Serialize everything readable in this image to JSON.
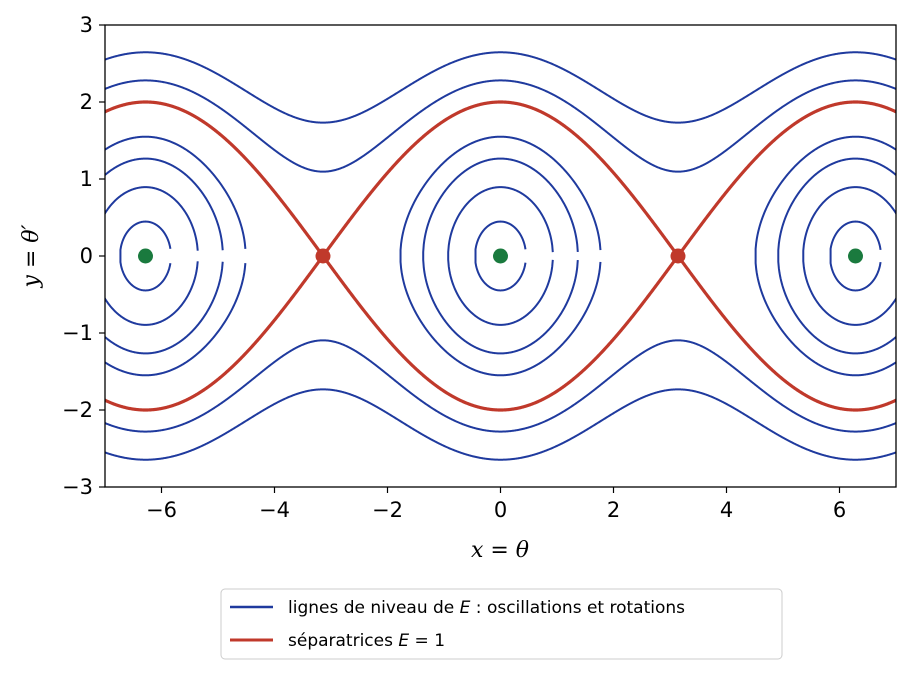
{
  "chart_data": {
    "type": "line",
    "title": "",
    "xlabel": "x = θ",
    "ylabel": "y = θ′",
    "xlim": [
      -7,
      7
    ],
    "ylim": [
      -3,
      3
    ],
    "xticks": [
      -6,
      -4,
      -2,
      0,
      2,
      4,
      6
    ],
    "yticks": [
      -3,
      -2,
      -1,
      0,
      1,
      2,
      3
    ],
    "xtick_labels": [
      "−6",
      "−4",
      "−2",
      "0",
      "2",
      "4",
      "6"
    ],
    "ytick_labels": [
      "−3",
      "−2",
      "−1",
      "0",
      "1",
      "2",
      "3"
    ],
    "grid": false,
    "legend_placement": "below",
    "colors": {
      "level": "#1f3a9e",
      "separatrix": "#c0392b",
      "center": "#1a7a3e",
      "saddle": "#c0392b"
    },
    "series": [
      {
        "name": "lignes de niveau de E : oscillations et rotations",
        "energy_levels": [
          0.05,
          0.2,
          0.4,
          0.6,
          1.3,
          1.75
        ],
        "color": "#1f3a9e"
      },
      {
        "name": "séparatrices E = 1",
        "energy_levels": [
          1.0
        ],
        "color": "#c0392b"
      }
    ],
    "equilibria": {
      "centers": [
        [
          -6.2832,
          0
        ],
        [
          0,
          0
        ],
        [
          6.2832,
          0
        ]
      ],
      "saddles": [
        [
          -3.1416,
          0
        ],
        [
          3.1416,
          0
        ]
      ]
    }
  },
  "legend": {
    "entry_levels": {
      "prefix": "lignes de niveau de ",
      "var": "E",
      "suffix": " : oscillations et rotations"
    },
    "entry_separatrix": {
      "prefix": "séparatrices ",
      "var": "E",
      "suffix": " = 1"
    }
  }
}
